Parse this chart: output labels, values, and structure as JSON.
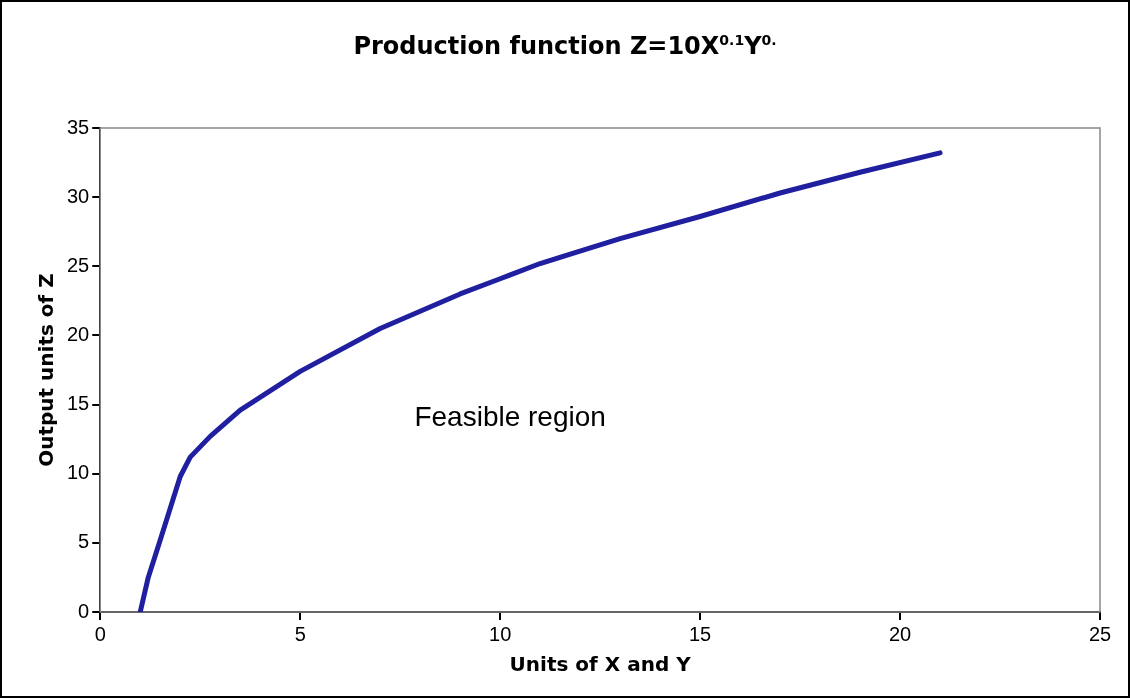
{
  "chart_data": {
    "type": "line",
    "title": "Production function Z=10X$^{0.1}$Y$^{0.}$",
    "xlabel": "Units of X and Y",
    "ylabel": "Output units of Z",
    "annotations": [
      "Feasible region"
    ],
    "series": [
      {
        "color": "#1f1fa0",
        "x": [
          1,
          1.2,
          1.5,
          2,
          2.25,
          2.75,
          3.5,
          5,
          7,
          9,
          10,
          11,
          13,
          15,
          17,
          19,
          21
        ],
        "values": [
          0,
          2.5,
          5.2,
          9.8,
          11.2,
          12.7,
          14.6,
          17.4,
          20.5,
          23,
          24.1,
          25.2,
          27,
          28.6,
          30.3,
          31.8,
          33.2
        ]
      }
    ],
    "xlim": [
      0,
      25
    ],
    "xticks": [
      0,
      5,
      10,
      15,
      20,
      25
    ],
    "ylim": [
      0,
      35
    ],
    "yticks": [
      0,
      5,
      10,
      15,
      20,
      25,
      30,
      35
    ],
    "grid": false,
    "legend": false,
    "marker": "none",
    "line_style": "solid"
  }
}
